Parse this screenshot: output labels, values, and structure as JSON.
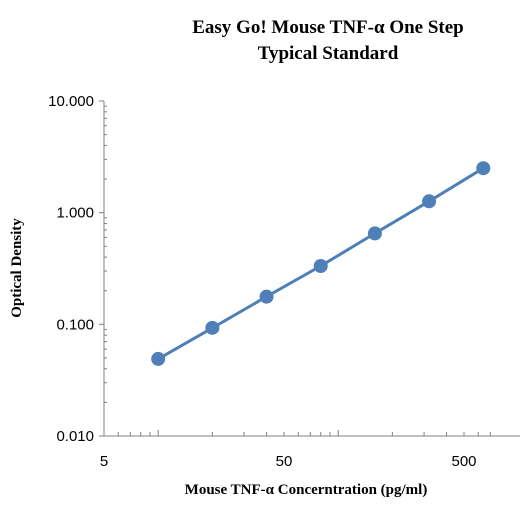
{
  "chart_data": {
    "type": "scatter",
    "title_lines": [
      "Easy Go! Mouse TNF-α One Step",
      "Typical Standard"
    ],
    "xlabel": "Mouse TNF-α Concerntration (pg/ml)",
    "ylabel": "Optical Density",
    "x_scale": "log",
    "y_scale": "log",
    "xlim": [
      5,
      700
    ],
    "ylim": [
      0.01,
      10
    ],
    "x_ticks": [
      {
        "value": 5,
        "label": "5"
      },
      {
        "value": 50,
        "label": "50"
      },
      {
        "value": 500,
        "label": "500"
      }
    ],
    "y_ticks": [
      {
        "value": 10,
        "label": "10.000"
      },
      {
        "value": 1,
        "label": "1.000"
      },
      {
        "value": 0.1,
        "label": "0.100"
      },
      {
        "value": 0.01,
        "label": "0.010"
      }
    ],
    "grid": false,
    "legend": false,
    "series": [
      {
        "color": "#4f7fb8",
        "marker": "circle",
        "connected": true,
        "x": [
          10,
          20,
          40,
          80,
          160,
          320,
          640
        ],
        "y": [
          0.049,
          0.093,
          0.177,
          0.333,
          0.652,
          1.265,
          2.5
        ]
      }
    ]
  }
}
